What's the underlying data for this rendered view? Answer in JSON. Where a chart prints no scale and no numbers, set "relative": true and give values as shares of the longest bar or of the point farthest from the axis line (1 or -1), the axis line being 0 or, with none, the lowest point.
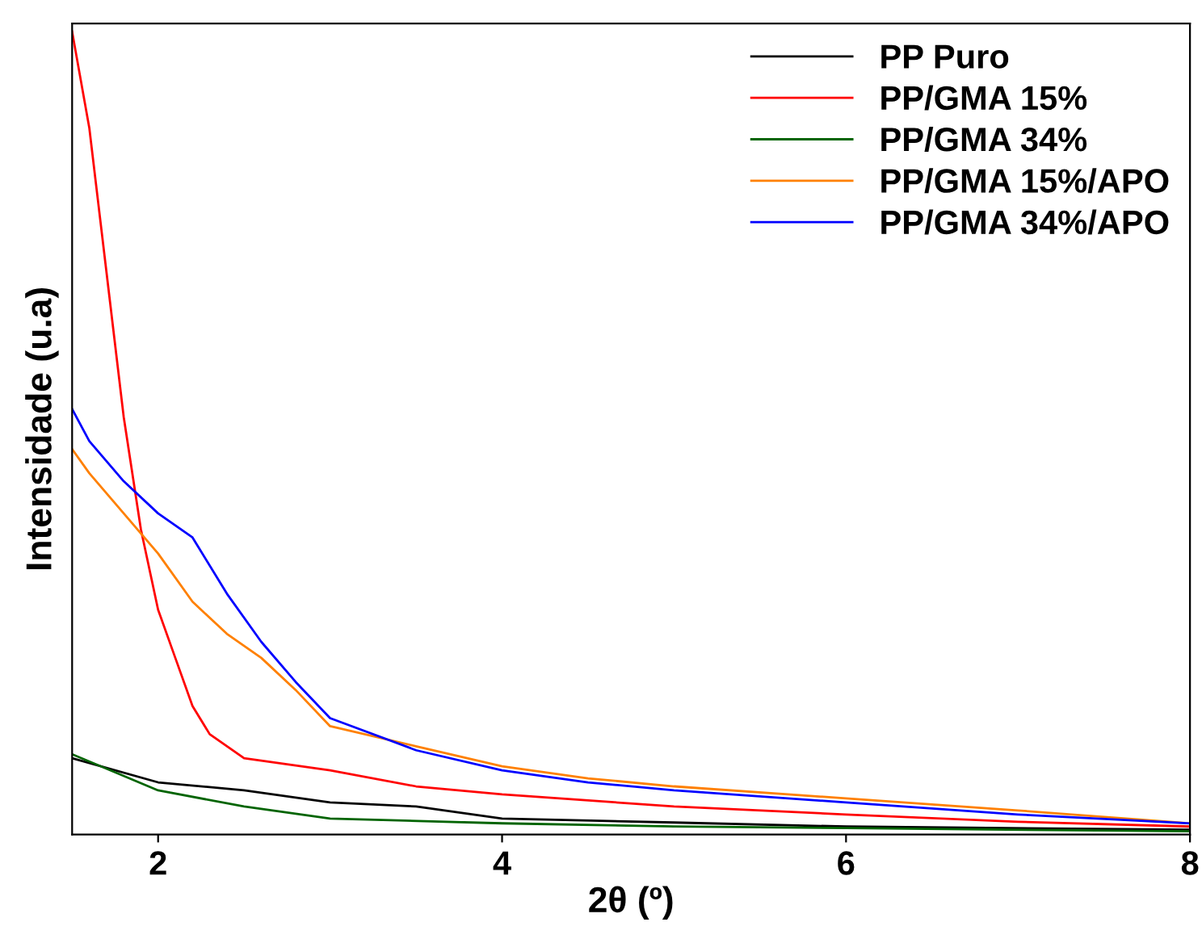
{
  "chart_data": {
    "type": "line",
    "xlabel": "2θ (º)",
    "ylabel": "Intensidade (u.a)",
    "relative": true,
    "xlim": [
      1.5,
      8
    ],
    "xticks": [
      2,
      4,
      6,
      8
    ],
    "tick_labels": "x",
    "legend": "top right",
    "grid": false,
    "series": [
      {
        "name": "PP Puro",
        "color": "#000000",
        "x": [
          1.5,
          2.0,
          2.5,
          3.0,
          3.5,
          4.0,
          5.0,
          6.0,
          8.0
        ],
        "values": [
          0.095,
          0.065,
          0.055,
          0.04,
          0.035,
          0.02,
          0.015,
          0.01,
          0.006
        ]
      },
      {
        "name": "PP/GMA 15%",
        "color": "#ff0000",
        "x": [
          1.5,
          1.6,
          1.7,
          1.8,
          1.9,
          2.0,
          2.1,
          2.2,
          2.3,
          2.5,
          3.0,
          3.5,
          4.0,
          5.0,
          6.0,
          7.0,
          8.0
        ],
        "values": [
          1.0,
          0.88,
          0.7,
          0.52,
          0.38,
          0.28,
          0.22,
          0.16,
          0.125,
          0.095,
          0.08,
          0.06,
          0.05,
          0.035,
          0.025,
          0.016,
          0.01
        ]
      },
      {
        "name": "PP/GMA 34%",
        "color": "#006400",
        "x": [
          1.5,
          2.0,
          2.5,
          3.0,
          4.0,
          5.0,
          6.0,
          8.0
        ],
        "values": [
          0.1,
          0.055,
          0.035,
          0.02,
          0.014,
          0.01,
          0.008,
          0.004
        ]
      },
      {
        "name": "PP/GMA 15%/APO",
        "color": "#ff8000",
        "x": [
          1.5,
          1.6,
          1.8,
          2.0,
          2.2,
          2.4,
          2.6,
          2.8,
          3.0,
          3.5,
          4.0,
          4.5,
          5.0,
          6.0,
          7.0,
          8.0
        ],
        "values": [
          0.48,
          0.45,
          0.4,
          0.35,
          0.29,
          0.25,
          0.22,
          0.18,
          0.135,
          0.11,
          0.085,
          0.07,
          0.06,
          0.045,
          0.03,
          0.014
        ]
      },
      {
        "name": "PP/GMA 34%/APO",
        "color": "#0000ff",
        "x": [
          1.5,
          1.6,
          1.8,
          2.0,
          2.2,
          2.4,
          2.6,
          2.8,
          3.0,
          3.5,
          4.0,
          4.5,
          5.0,
          6.0,
          7.0,
          8.0
        ],
        "values": [
          0.53,
          0.49,
          0.44,
          0.4,
          0.37,
          0.3,
          0.24,
          0.19,
          0.145,
          0.105,
          0.08,
          0.065,
          0.055,
          0.04,
          0.025,
          0.014
        ]
      }
    ]
  }
}
